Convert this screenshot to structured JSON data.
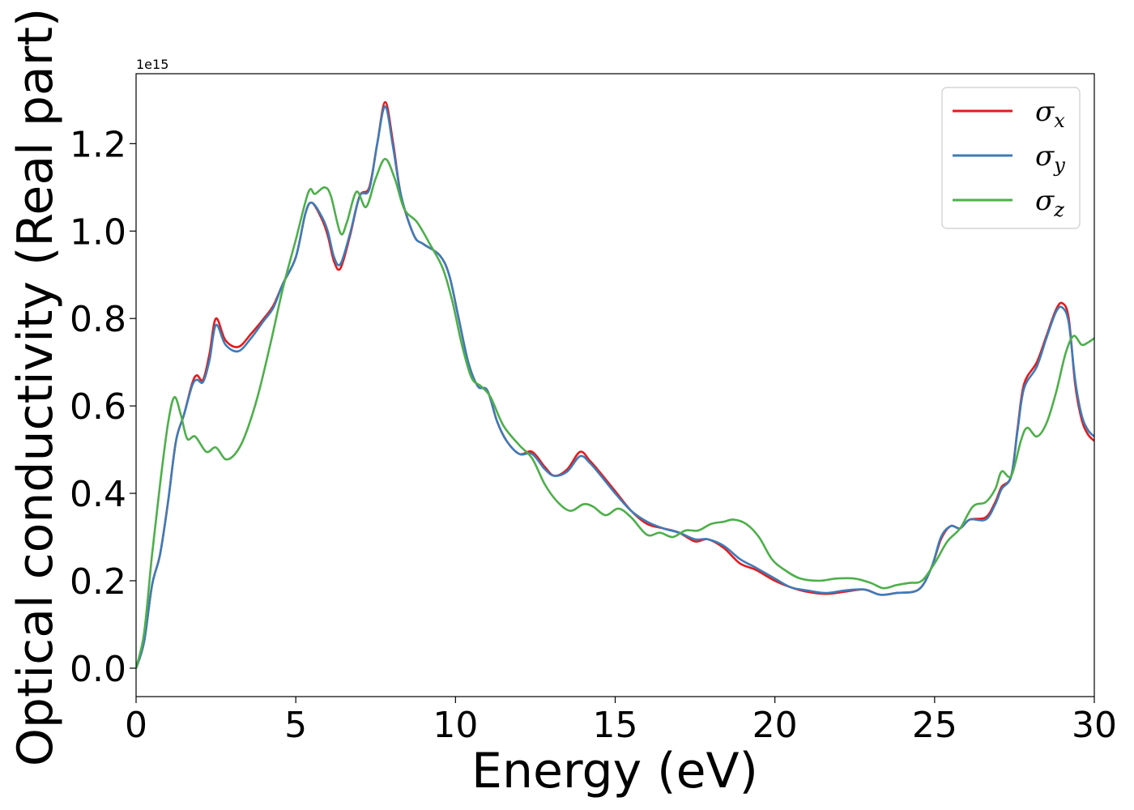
{
  "chart_data": {
    "type": "line",
    "xlabel": "Energy (eV)",
    "ylabel": "Optical conductivity (Real part)",
    "y_offset_label": "1e15",
    "xlim": [
      0,
      30
    ],
    "ylim": [
      -0.065,
      1.36
    ],
    "x_ticks": [
      0,
      5,
      10,
      15,
      20,
      25,
      30
    ],
    "x_tick_labels": [
      "0",
      "5",
      "10",
      "15",
      "20",
      "25",
      "30"
    ],
    "y_ticks": [
      0.0,
      0.2,
      0.4,
      0.6,
      0.8,
      1.0,
      1.2
    ],
    "y_tick_labels": [
      "0.0",
      "0.2",
      "0.4",
      "0.6",
      "0.8",
      "1.0",
      "1.2"
    ],
    "legend_position": "top-right",
    "grid": false,
    "series": [
      {
        "name": "σx",
        "symbol": "σ",
        "subscript": "x",
        "color": "#e41a1c",
        "points": [
          [
            0,
            0.0
          ],
          [
            0.25,
            0.06
          ],
          [
            0.5,
            0.19
          ],
          [
            0.75,
            0.26
          ],
          [
            1.0,
            0.38
          ],
          [
            1.25,
            0.52
          ],
          [
            1.5,
            0.58
          ],
          [
            1.75,
            0.65
          ],
          [
            1.9,
            0.67
          ],
          [
            2.1,
            0.66
          ],
          [
            2.3,
            0.72
          ],
          [
            2.5,
            0.8
          ],
          [
            2.8,
            0.75
          ],
          [
            3.2,
            0.735
          ],
          [
            3.6,
            0.765
          ],
          [
            4.0,
            0.8
          ],
          [
            4.3,
            0.83
          ],
          [
            4.6,
            0.88
          ],
          [
            5.0,
            0.94
          ],
          [
            5.3,
            1.04
          ],
          [
            5.5,
            1.065
          ],
          [
            5.8,
            1.03
          ],
          [
            6.0,
            0.99
          ],
          [
            6.2,
            0.93
          ],
          [
            6.4,
            0.915
          ],
          [
            6.7,
            0.99
          ],
          [
            7.0,
            1.08
          ],
          [
            7.3,
            1.1
          ],
          [
            7.55,
            1.2
          ],
          [
            7.8,
            1.295
          ],
          [
            8.05,
            1.2
          ],
          [
            8.3,
            1.08
          ],
          [
            8.7,
            0.99
          ],
          [
            9.0,
            0.97
          ],
          [
            9.5,
            0.945
          ],
          [
            9.8,
            0.9
          ],
          [
            10.1,
            0.8
          ],
          [
            10.4,
            0.7
          ],
          [
            10.7,
            0.645
          ],
          [
            11.0,
            0.635
          ],
          [
            11.3,
            0.565
          ],
          [
            11.6,
            0.52
          ],
          [
            12.0,
            0.49
          ],
          [
            12.4,
            0.495
          ],
          [
            12.8,
            0.46
          ],
          [
            13.1,
            0.44
          ],
          [
            13.5,
            0.455
          ],
          [
            13.9,
            0.495
          ],
          [
            14.2,
            0.475
          ],
          [
            14.5,
            0.45
          ],
          [
            15.0,
            0.405
          ],
          [
            15.5,
            0.36
          ],
          [
            16.0,
            0.33
          ],
          [
            16.5,
            0.32
          ],
          [
            17.0,
            0.31
          ],
          [
            17.5,
            0.29
          ],
          [
            17.9,
            0.295
          ],
          [
            18.4,
            0.275
          ],
          [
            18.9,
            0.24
          ],
          [
            19.4,
            0.225
          ],
          [
            20.0,
            0.2
          ],
          [
            20.5,
            0.185
          ],
          [
            21.0,
            0.175
          ],
          [
            21.6,
            0.17
          ],
          [
            22.2,
            0.175
          ],
          [
            22.8,
            0.18
          ],
          [
            23.3,
            0.168
          ],
          [
            23.8,
            0.172
          ],
          [
            24.5,
            0.18
          ],
          [
            24.9,
            0.23
          ],
          [
            25.2,
            0.295
          ],
          [
            25.5,
            0.325
          ],
          [
            25.8,
            0.32
          ],
          [
            26.1,
            0.34
          ],
          [
            26.6,
            0.345
          ],
          [
            26.9,
            0.38
          ],
          [
            27.1,
            0.415
          ],
          [
            27.4,
            0.44
          ],
          [
            27.6,
            0.55
          ],
          [
            27.8,
            0.65
          ],
          [
            28.2,
            0.7
          ],
          [
            28.5,
            0.76
          ],
          [
            28.8,
            0.82
          ],
          [
            29.0,
            0.835
          ],
          [
            29.2,
            0.8
          ],
          [
            29.4,
            0.65
          ],
          [
            29.6,
            0.57
          ],
          [
            29.8,
            0.535
          ],
          [
            30.0,
            0.52
          ]
        ]
      },
      {
        "name": "σy",
        "symbol": "σ",
        "subscript": "y",
        "color": "#3d7cb8",
        "points": [
          [
            0,
            0.0
          ],
          [
            0.25,
            0.06
          ],
          [
            0.5,
            0.19
          ],
          [
            0.75,
            0.26
          ],
          [
            1.0,
            0.38
          ],
          [
            1.25,
            0.52
          ],
          [
            1.5,
            0.58
          ],
          [
            1.75,
            0.645
          ],
          [
            1.9,
            0.66
          ],
          [
            2.1,
            0.655
          ],
          [
            2.3,
            0.705
          ],
          [
            2.5,
            0.785
          ],
          [
            2.8,
            0.74
          ],
          [
            3.2,
            0.725
          ],
          [
            3.6,
            0.755
          ],
          [
            4.0,
            0.795
          ],
          [
            4.3,
            0.825
          ],
          [
            4.6,
            0.88
          ],
          [
            5.0,
            0.94
          ],
          [
            5.3,
            1.04
          ],
          [
            5.5,
            1.065
          ],
          [
            5.8,
            1.035
          ],
          [
            6.0,
            1.0
          ],
          [
            6.2,
            0.94
          ],
          [
            6.4,
            0.925
          ],
          [
            6.7,
            0.995
          ],
          [
            7.0,
            1.08
          ],
          [
            7.3,
            1.095
          ],
          [
            7.55,
            1.2
          ],
          [
            7.8,
            1.285
          ],
          [
            8.05,
            1.19
          ],
          [
            8.3,
            1.08
          ],
          [
            8.7,
            0.99
          ],
          [
            9.0,
            0.97
          ],
          [
            9.5,
            0.945
          ],
          [
            9.8,
            0.9
          ],
          [
            10.1,
            0.8
          ],
          [
            10.4,
            0.7
          ],
          [
            10.7,
            0.645
          ],
          [
            11.0,
            0.635
          ],
          [
            11.3,
            0.565
          ],
          [
            11.6,
            0.52
          ],
          [
            12.0,
            0.49
          ],
          [
            12.4,
            0.49
          ],
          [
            12.8,
            0.455
          ],
          [
            13.1,
            0.44
          ],
          [
            13.5,
            0.45
          ],
          [
            13.9,
            0.485
          ],
          [
            14.2,
            0.47
          ],
          [
            14.5,
            0.445
          ],
          [
            15.0,
            0.4
          ],
          [
            15.5,
            0.36
          ],
          [
            16.0,
            0.335
          ],
          [
            16.5,
            0.32
          ],
          [
            17.0,
            0.31
          ],
          [
            17.5,
            0.295
          ],
          [
            17.9,
            0.295
          ],
          [
            18.4,
            0.28
          ],
          [
            18.9,
            0.25
          ],
          [
            19.4,
            0.23
          ],
          [
            20.0,
            0.205
          ],
          [
            20.5,
            0.185
          ],
          [
            21.0,
            0.178
          ],
          [
            21.6,
            0.172
          ],
          [
            22.2,
            0.178
          ],
          [
            22.8,
            0.18
          ],
          [
            23.3,
            0.168
          ],
          [
            23.8,
            0.172
          ],
          [
            24.5,
            0.18
          ],
          [
            24.9,
            0.23
          ],
          [
            25.2,
            0.3
          ],
          [
            25.5,
            0.325
          ],
          [
            25.8,
            0.32
          ],
          [
            26.1,
            0.34
          ],
          [
            26.6,
            0.34
          ],
          [
            26.9,
            0.375
          ],
          [
            27.1,
            0.41
          ],
          [
            27.4,
            0.44
          ],
          [
            27.6,
            0.545
          ],
          [
            27.8,
            0.64
          ],
          [
            28.2,
            0.69
          ],
          [
            28.5,
            0.755
          ],
          [
            28.8,
            0.815
          ],
          [
            29.0,
            0.825
          ],
          [
            29.2,
            0.79
          ],
          [
            29.4,
            0.66
          ],
          [
            29.6,
            0.58
          ],
          [
            29.8,
            0.545
          ],
          [
            30.0,
            0.53
          ]
        ]
      },
      {
        "name": "σz",
        "symbol": "σ",
        "subscript": "z",
        "color": "#4daf4a",
        "points": [
          [
            0,
            0.0
          ],
          [
            0.25,
            0.08
          ],
          [
            0.5,
            0.26
          ],
          [
            0.75,
            0.42
          ],
          [
            1.0,
            0.56
          ],
          [
            1.2,
            0.62
          ],
          [
            1.4,
            0.58
          ],
          [
            1.6,
            0.525
          ],
          [
            1.85,
            0.53
          ],
          [
            2.2,
            0.495
          ],
          [
            2.5,
            0.505
          ],
          [
            2.8,
            0.478
          ],
          [
            3.1,
            0.49
          ],
          [
            3.4,
            0.53
          ],
          [
            3.8,
            0.62
          ],
          [
            4.2,
            0.74
          ],
          [
            4.6,
            0.87
          ],
          [
            5.0,
            0.98
          ],
          [
            5.4,
            1.09
          ],
          [
            5.6,
            1.085
          ],
          [
            5.9,
            1.1
          ],
          [
            6.1,
            1.08
          ],
          [
            6.4,
            0.995
          ],
          [
            6.6,
            1.02
          ],
          [
            6.9,
            1.09
          ],
          [
            7.2,
            1.055
          ],
          [
            7.5,
            1.12
          ],
          [
            7.8,
            1.165
          ],
          [
            8.1,
            1.12
          ],
          [
            8.4,
            1.05
          ],
          [
            8.8,
            1.02
          ],
          [
            9.2,
            0.97
          ],
          [
            9.6,
            0.915
          ],
          [
            9.9,
            0.84
          ],
          [
            10.2,
            0.74
          ],
          [
            10.5,
            0.665
          ],
          [
            10.8,
            0.645
          ],
          [
            11.1,
            0.62
          ],
          [
            11.5,
            0.555
          ],
          [
            12.0,
            0.51
          ],
          [
            12.4,
            0.48
          ],
          [
            12.8,
            0.42
          ],
          [
            13.2,
            0.38
          ],
          [
            13.6,
            0.36
          ],
          [
            14.0,
            0.375
          ],
          [
            14.3,
            0.37
          ],
          [
            14.7,
            0.35
          ],
          [
            15.1,
            0.365
          ],
          [
            15.5,
            0.345
          ],
          [
            16.0,
            0.305
          ],
          [
            16.4,
            0.31
          ],
          [
            16.8,
            0.3
          ],
          [
            17.2,
            0.315
          ],
          [
            17.6,
            0.315
          ],
          [
            18.0,
            0.33
          ],
          [
            18.4,
            0.335
          ],
          [
            18.7,
            0.34
          ],
          [
            19.1,
            0.33
          ],
          [
            19.5,
            0.3
          ],
          [
            19.9,
            0.25
          ],
          [
            20.3,
            0.225
          ],
          [
            20.8,
            0.205
          ],
          [
            21.4,
            0.2
          ],
          [
            21.9,
            0.205
          ],
          [
            22.5,
            0.205
          ],
          [
            23.0,
            0.195
          ],
          [
            23.4,
            0.183
          ],
          [
            23.8,
            0.19
          ],
          [
            24.2,
            0.195
          ],
          [
            24.6,
            0.2
          ],
          [
            25.0,
            0.24
          ],
          [
            25.4,
            0.29
          ],
          [
            25.8,
            0.32
          ],
          [
            26.2,
            0.37
          ],
          [
            26.6,
            0.38
          ],
          [
            26.9,
            0.41
          ],
          [
            27.1,
            0.45
          ],
          [
            27.4,
            0.44
          ],
          [
            27.7,
            0.52
          ],
          [
            27.9,
            0.55
          ],
          [
            28.2,
            0.53
          ],
          [
            28.5,
            0.56
          ],
          [
            28.8,
            0.63
          ],
          [
            29.1,
            0.72
          ],
          [
            29.35,
            0.76
          ],
          [
            29.6,
            0.74
          ],
          [
            29.8,
            0.745
          ],
          [
            30.0,
            0.755
          ]
        ]
      }
    ]
  }
}
